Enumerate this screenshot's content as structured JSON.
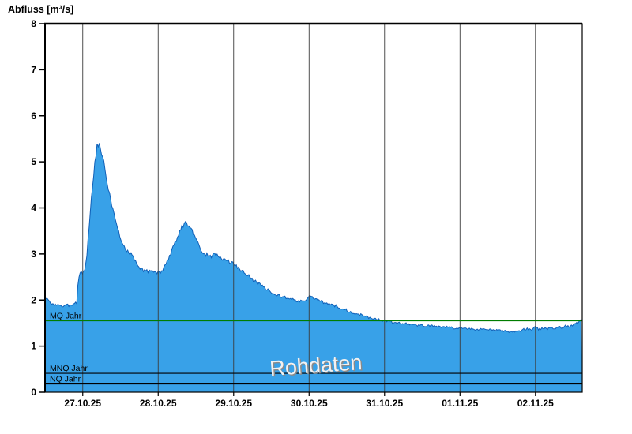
{
  "header": {
    "title": "Abfluss [m³/s]"
  },
  "chart_data": {
    "type": "area",
    "title": "Abfluss [m³/s]",
    "ylabel": "Abfluss [m³/s]",
    "xlabel": "",
    "ylim": [
      0,
      8
    ],
    "yticks": [
      0,
      1,
      2,
      3,
      4,
      5,
      6,
      7,
      8
    ],
    "xlim_days": [
      0,
      7.12
    ],
    "x_tick_days": [
      0.5,
      1.5,
      2.5,
      3.5,
      4.5,
      5.5,
      6.5
    ],
    "x_tick_labels": [
      "27.10.25",
      "28.10.25",
      "29.10.25",
      "30.10.25",
      "31.10.25",
      "01.11.25",
      "02.11.25"
    ],
    "series_name": "Abfluss",
    "watermark": "Rohdaten",
    "grid": "vertical-only",
    "legend": "none",
    "reference_lines": [
      {
        "label": "MQ Jahr",
        "value": 1.55,
        "color": "#007d00"
      },
      {
        "label": "MNQ Jahr",
        "value": 0.41,
        "color": "#000000"
      },
      {
        "label": "NQ Jahr",
        "value": 0.18,
        "color": "#000000"
      }
    ],
    "colors": {
      "fill": "#38a1e8",
      "stroke": "#1060b8",
      "grid": "#3c3c3c",
      "frame": "#000000",
      "watermark_fill": "#f2f2f2",
      "watermark_shadow": "#8a8a8a"
    },
    "noise": {
      "base": 0.012,
      "scale": 0.01,
      "step_days": 0.015
    },
    "keypoints": [
      [
        0,
        2.05
      ],
      [
        0.08,
        1.95
      ],
      [
        0.18,
        1.87
      ],
      [
        0.28,
        1.88
      ],
      [
        0.38,
        1.9
      ],
      [
        0.42,
        1.95
      ],
      [
        0.44,
        2.45
      ],
      [
        0.47,
        2.58
      ],
      [
        0.52,
        2.62
      ],
      [
        0.55,
        2.9
      ],
      [
        0.58,
        3.5
      ],
      [
        0.62,
        4.3
      ],
      [
        0.66,
        5.0
      ],
      [
        0.69,
        5.35
      ],
      [
        0.71,
        5.4
      ],
      [
        0.74,
        5.28
      ],
      [
        0.77,
        5.08
      ],
      [
        0.8,
        4.75
      ],
      [
        0.84,
        4.4
      ],
      [
        0.88,
        4.1
      ],
      [
        0.92,
        3.8
      ],
      [
        0.96,
        3.55
      ],
      [
        1.0,
        3.35
      ],
      [
        1.05,
        3.15
      ],
      [
        1.1,
        3.05
      ],
      [
        1.15,
        2.98
      ],
      [
        1.2,
        2.85
      ],
      [
        1.25,
        2.72
      ],
      [
        1.3,
        2.65
      ],
      [
        1.4,
        2.62
      ],
      [
        1.5,
        2.6
      ],
      [
        1.55,
        2.63
      ],
      [
        1.6,
        2.75
      ],
      [
        1.65,
        2.95
      ],
      [
        1.7,
        3.15
      ],
      [
        1.75,
        3.35
      ],
      [
        1.8,
        3.55
      ],
      [
        1.85,
        3.65
      ],
      [
        1.87,
        3.7
      ],
      [
        1.9,
        3.62
      ],
      [
        1.95,
        3.5
      ],
      [
        2.0,
        3.35
      ],
      [
        2.05,
        3.15
      ],
      [
        2.1,
        3.0
      ],
      [
        2.15,
        2.98
      ],
      [
        2.2,
        2.95
      ],
      [
        2.25,
        3.0
      ],
      [
        2.3,
        2.95
      ],
      [
        2.35,
        2.9
      ],
      [
        2.4,
        2.88
      ],
      [
        2.45,
        2.82
      ],
      [
        2.5,
        2.78
      ],
      [
        2.55,
        2.72
      ],
      [
        2.6,
        2.65
      ],
      [
        2.65,
        2.6
      ],
      [
        2.7,
        2.52
      ],
      [
        2.75,
        2.45
      ],
      [
        2.8,
        2.4
      ],
      [
        2.85,
        2.33
      ],
      [
        2.9,
        2.28
      ],
      [
        2.95,
        2.22
      ],
      [
        3.0,
        2.18
      ],
      [
        3.05,
        2.13
      ],
      [
        3.1,
        2.1
      ],
      [
        3.15,
        2.07
      ],
      [
        3.2,
        2.05
      ],
      [
        3.25,
        2.02
      ],
      [
        3.3,
        2.0
      ],
      [
        3.4,
        1.98
      ],
      [
        3.45,
        2.0
      ],
      [
        3.5,
        2.05
      ],
      [
        3.53,
        2.1
      ],
      [
        3.56,
        2.05
      ],
      [
        3.6,
        2.0
      ],
      [
        3.65,
        1.97
      ],
      [
        3.7,
        1.95
      ],
      [
        3.75,
        1.93
      ],
      [
        3.8,
        1.9
      ],
      [
        3.85,
        1.88
      ],
      [
        3.9,
        1.85
      ],
      [
        3.95,
        1.82
      ],
      [
        4.0,
        1.78
      ],
      [
        4.05,
        1.75
      ],
      [
        4.1,
        1.72
      ],
      [
        4.15,
        1.7
      ],
      [
        4.2,
        1.67
      ],
      [
        4.25,
        1.65
      ],
      [
        4.3,
        1.62
      ],
      [
        4.35,
        1.6
      ],
      [
        4.4,
        1.58
      ],
      [
        4.45,
        1.56
      ],
      [
        4.5,
        1.55
      ],
      [
        4.6,
        1.52
      ],
      [
        4.7,
        1.5
      ],
      [
        4.8,
        1.48
      ],
      [
        4.9,
        1.46
      ],
      [
        5.0,
        1.45
      ],
      [
        5.1,
        1.44
      ],
      [
        5.2,
        1.42
      ],
      [
        5.3,
        1.41
      ],
      [
        5.4,
        1.4
      ],
      [
        5.5,
        1.39
      ],
      [
        5.6,
        1.38
      ],
      [
        5.7,
        1.37
      ],
      [
        5.8,
        1.36
      ],
      [
        5.9,
        1.35
      ],
      [
        6.0,
        1.34
      ],
      [
        6.1,
        1.32
      ],
      [
        6.2,
        1.3
      ],
      [
        6.3,
        1.34
      ],
      [
        6.4,
        1.38
      ],
      [
        6.45,
        1.33
      ],
      [
        6.5,
        1.42
      ],
      [
        6.55,
        1.36
      ],
      [
        6.6,
        1.4
      ],
      [
        6.65,
        1.37
      ],
      [
        6.7,
        1.4
      ],
      [
        6.75,
        1.38
      ],
      [
        6.8,
        1.42
      ],
      [
        6.85,
        1.4
      ],
      [
        6.9,
        1.44
      ],
      [
        6.95,
        1.42
      ],
      [
        7.0,
        1.46
      ],
      [
        7.05,
        1.5
      ],
      [
        7.1,
        1.55
      ],
      [
        7.12,
        1.57
      ]
    ]
  }
}
